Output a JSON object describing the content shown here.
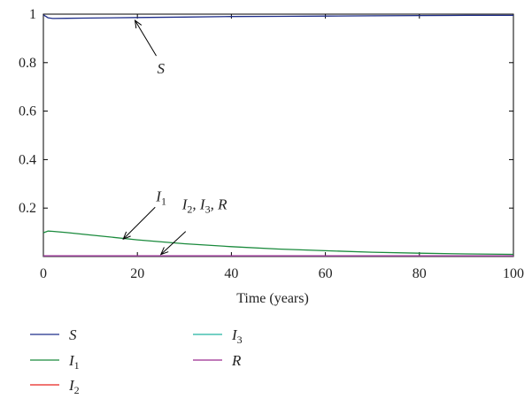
{
  "chart_data": {
    "type": "line",
    "xlabel": "Time (years)",
    "ylabel": "",
    "xlim": [
      0,
      100
    ],
    "ylim": [
      0,
      1
    ],
    "xticks": [
      0,
      20,
      40,
      60,
      80,
      100
    ],
    "yticks": [
      0.2,
      0.4,
      0.6,
      0.8,
      1
    ],
    "xtick_labels": [
      "0",
      "20",
      "40",
      "60",
      "80",
      "100"
    ],
    "ytick_labels": [
      "0.2",
      "0.4",
      "0.6",
      "0.8",
      "1"
    ],
    "grid": false,
    "legend_position": "bottom",
    "series": [
      {
        "name": "S",
        "color": "#1f2e8a",
        "x": [
          0,
          1,
          2,
          5,
          10,
          20,
          30,
          40,
          50,
          60,
          70,
          80,
          90,
          100
        ],
        "y": [
          0.997,
          0.985,
          0.982,
          0.983,
          0.984,
          0.986,
          0.988,
          0.99,
          0.991,
          0.992,
          0.993,
          0.994,
          0.995,
          0.995
        ]
      },
      {
        "name": "I1",
        "color": "#1a8a3c",
        "x": [
          0,
          1,
          2,
          5,
          10,
          20,
          30,
          40,
          50,
          60,
          70,
          80,
          90,
          100
        ],
        "y": [
          0.098,
          0.105,
          0.104,
          0.099,
          0.089,
          0.069,
          0.053,
          0.041,
          0.031,
          0.024,
          0.018,
          0.014,
          0.011,
          0.009
        ]
      },
      {
        "name": "I2",
        "color": "#e8231f",
        "x": [
          0,
          20,
          40,
          60,
          80,
          100
        ],
        "y": [
          0.002,
          0.002,
          0.002,
          0.002,
          0.002,
          0.002
        ]
      },
      {
        "name": "I3",
        "color": "#22b3a0",
        "x": [
          0,
          20,
          40,
          60,
          80,
          100
        ],
        "y": [
          0.002,
          0.002,
          0.002,
          0.002,
          0.002,
          0.002
        ]
      },
      {
        "name": "R",
        "color": "#9b2a8f",
        "x": [
          0,
          20,
          40,
          60,
          80,
          100
        ],
        "y": [
          0.003,
          0.003,
          0.003,
          0.003,
          0.003,
          0.003
        ]
      }
    ],
    "annotations": {
      "s": {
        "text": "S",
        "x": 19.5,
        "y": 0.985
      },
      "i1": {
        "base": "I",
        "sub": "1",
        "x": 17,
        "y": 0.072
      },
      "i23r": {
        "parts": [
          "I",
          "2",
          ", ",
          "I",
          "3",
          ", ",
          "R"
        ],
        "x": 25,
        "y": 0.005
      }
    },
    "legend": [
      {
        "base": "S",
        "sub": "",
        "color": "#1f2e8a"
      },
      {
        "base": "I",
        "sub": "1",
        "color": "#1a8a3c"
      },
      {
        "base": "I",
        "sub": "2",
        "color": "#e8231f"
      },
      {
        "base": "I",
        "sub": "3",
        "color": "#22b3a0"
      },
      {
        "base": "R",
        "sub": "",
        "color": "#9b2a8f"
      }
    ]
  }
}
